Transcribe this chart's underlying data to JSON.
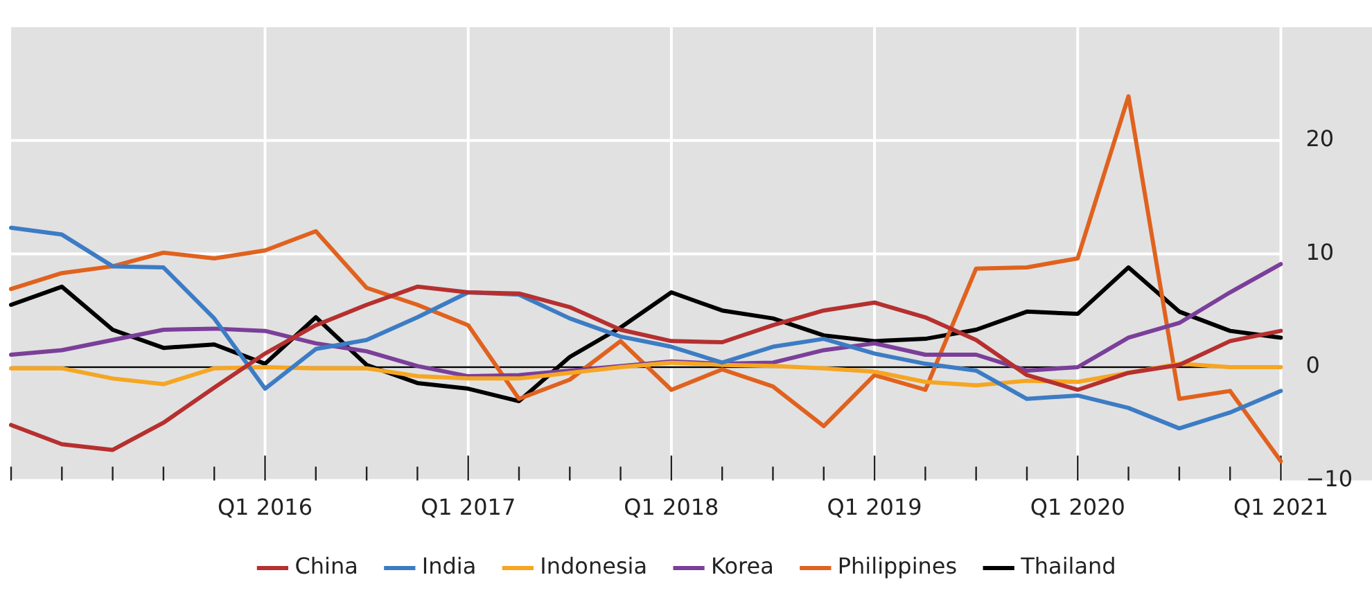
{
  "chart_data": {
    "type": "line",
    "categories": [
      null,
      null,
      null,
      null,
      null,
      "Q1 2016",
      null,
      null,
      null,
      "Q1 2017",
      null,
      null,
      null,
      "Q1 2018",
      null,
      null,
      null,
      "Q1 2019",
      null,
      null,
      null,
      "Q1 2020",
      null,
      null,
      null,
      "Q1 2021"
    ],
    "series": [
      {
        "name": "China",
        "color": "#b5302f",
        "values": [
          -5.1,
          -6.8,
          -7.3,
          -4.9,
          -1.8,
          1.2,
          3.7,
          5.5,
          7.1,
          6.6,
          6.5,
          5.3,
          3.3,
          2.3,
          2.2,
          3.7,
          5.0,
          5.7,
          4.4,
          2.4,
          -0.7,
          -2.0,
          -0.5,
          0.2,
          2.3,
          3.2
        ]
      },
      {
        "name": "India",
        "color": "#3c7cc4",
        "values": [
          12.3,
          11.7,
          8.9,
          8.8,
          4.3,
          -1.9,
          1.6,
          2.4,
          4.4,
          6.6,
          6.4,
          4.3,
          2.7,
          1.8,
          0.4,
          1.8,
          2.5,
          1.2,
          0.3,
          -0.3,
          -2.8,
          -2.5,
          -3.6,
          -5.4,
          -4.0,
          -2.1
        ]
      },
      {
        "name": "Indonesia",
        "color": "#f5a623",
        "values": [
          -0.1,
          -0.1,
          -1.0,
          -1.5,
          -0.1,
          0,
          -0.1,
          -0.1,
          -0.8,
          -1.0,
          -1.0,
          -0.5,
          0,
          0.4,
          0.2,
          0.1,
          -0.1,
          -0.4,
          -1.3,
          -1.6,
          -1.2,
          -1.3,
          -0.5,
          0.3,
          0,
          0
        ]
      },
      {
        "name": "Korea",
        "color": "#7b3f99",
        "values": [
          1.1,
          1.5,
          2.4,
          3.3,
          3.4,
          3.2,
          2.1,
          1.4,
          0.1,
          -0.8,
          -0.7,
          -0.3,
          0.1,
          0.5,
          0.3,
          0.4,
          1.5,
          2.1,
          1.1,
          1.1,
          -0.3,
          0,
          2.6,
          3.9,
          6.6,
          9.1
        ]
      },
      {
        "name": "Philippines",
        "color": "#e0621e",
        "values": [
          6.9,
          8.3,
          8.9,
          10.1,
          9.6,
          10.3,
          12.0,
          7.0,
          5.5,
          3.7,
          -2.8,
          -1.1,
          2.3,
          -2.0,
          -0.2,
          -1.7,
          -5.2,
          -0.7,
          -2.0,
          8.7,
          8.8,
          9.6,
          23.9,
          -2.8,
          -2.1,
          -8.3
        ]
      },
      {
        "name": "Thailand",
        "color": "#000000",
        "values": [
          5.5,
          7.1,
          3.3,
          1.7,
          2.0,
          0.3,
          4.4,
          0.2,
          -1.4,
          -1.9,
          -3.0,
          0.9,
          3.5,
          6.6,
          5.0,
          4.3,
          2.8,
          2.3,
          2.5,
          3.3,
          4.9,
          4.7,
          8.8,
          4.9,
          3.2,
          2.6
        ]
      }
    ],
    "ylim": [
      -10,
      30
    ],
    "yticks": [
      {
        "value": -10,
        "label": "−10"
      },
      0,
      10,
      20
    ],
    "ref_lines": [
      {
        "axis": "y",
        "value": 0,
        "color": "#000000"
      }
    ],
    "grid": true,
    "legend": "bottom",
    "marker": "none",
    "line_style": "solid"
  }
}
